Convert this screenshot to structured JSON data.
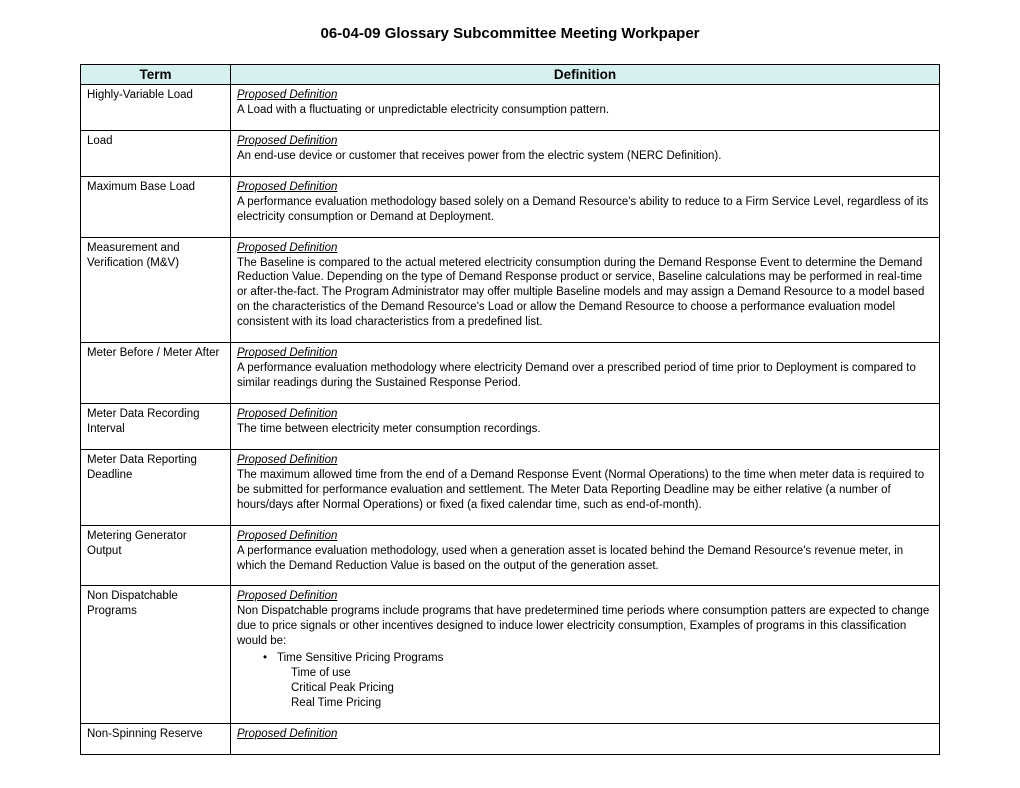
{
  "title": "06-04-09 Glossary Subcommittee Meeting Workpaper",
  "headers": {
    "term": "Term",
    "definition": "Definition"
  },
  "proposed_label": "Proposed Definition",
  "rows": [
    {
      "term": "Highly-Variable Load",
      "def": "A Load with a fluctuating or unpredictable electricity consumption pattern."
    },
    {
      "term": "Load",
      "def": "An end-use device or customer that receives power from the electric system (NERC Definition)."
    },
    {
      "term": "Maximum Base Load",
      "def": "A performance evaluation methodology based solely on a Demand Resource's ability to reduce to a Firm Service Level, regardless of its electricity consumption or Demand at Deployment."
    },
    {
      "term": "Measurement and Verification (M&V)",
      "def": "The Baseline is compared to the actual metered electricity consumption during the Demand Response Event to determine the Demand Reduction Value.  Depending on the type of Demand Response product or service, Baseline calculations may be performed in real-time or after-the-fact.  The Program Administrator may offer multiple Baseline models and may assign a Demand Resource to a model based on the characteristics of the Demand Resource's Load or allow the Demand Resource to choose a performance evaluation model consistent with its load characteristics from a predefined list."
    },
    {
      "term": "Meter Before / Meter After",
      "def": "A performance evaluation methodology where electricity Demand over a prescribed period of time prior to Deployment is compared to similar readings during the Sustained Response Period."
    },
    {
      "term": "Meter Data Recording Interval",
      "def": "The time between electricity meter consumption recordings."
    },
    {
      "term": "Meter Data Reporting Deadline",
      "def": "The maximum allowed time from the end of a Demand Response Event (Normal Operations) to the time when meter data is required to be submitted for performance evaluation and settlement.  The Meter Data Reporting Deadline may be either relative (a number of hours/days after Normal Operations) or fixed (a fixed calendar time, such as end-of-month)."
    },
    {
      "term": "Metering Generator Output",
      "def": "A performance evaluation methodology, used when a generation asset is located behind the Demand Resource's revenue meter, in which the Demand Reduction Value is based on the output of the generation asset."
    },
    {
      "term": "Non Dispatchable Programs",
      "def": "Non Dispatchable programs include programs that have predetermined time periods where consumption patters are expected to change due to price signals or other incentives designed to induce lower electricity consumption, Examples of programs in this classification would be:",
      "bullets": {
        "l1": "Time Sensitive Pricing Programs",
        "l2a": "Time of use",
        "l2b": "Critical Peak Pricing",
        "l2c": "Real Time Pricing"
      }
    },
    {
      "term": "Non-Spinning Reserve",
      "def": ""
    }
  ]
}
